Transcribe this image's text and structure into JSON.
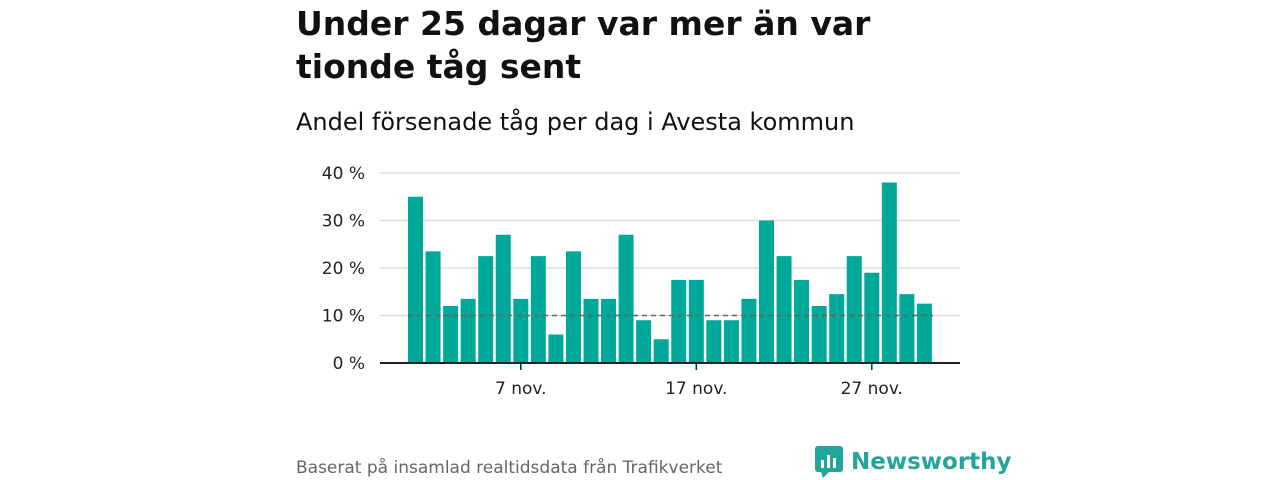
{
  "title": "Under 25 dagar var mer än var tionde tåg sent",
  "subtitle": "Andel försenade tåg per dag i Avesta kommun",
  "footer": "Baserat på insamlad realtidsdata från Trafikverket",
  "brand": "Newsworthy",
  "colors": {
    "bar": "#00a89a",
    "brand": "#22a59a",
    "reference_line": "#666666"
  },
  "chart_data": {
    "type": "bar",
    "x_tick_labels": [
      "7 nov.",
      "17 nov.",
      "27 nov."
    ],
    "x_tick_days": [
      7,
      17,
      27
    ],
    "days": [
      1,
      2,
      3,
      4,
      5,
      6,
      7,
      8,
      9,
      10,
      11,
      12,
      13,
      14,
      15,
      16,
      17,
      18,
      19,
      20,
      21,
      22,
      23,
      24,
      25,
      26,
      27,
      28,
      29,
      30
    ],
    "values": [
      35,
      23.5,
      12,
      13.5,
      22.5,
      27,
      13.5,
      22.5,
      6,
      23.5,
      13.5,
      13.5,
      27,
      9,
      5,
      17.5,
      17.5,
      9,
      9,
      13.5,
      30,
      22.5,
      17.5,
      12,
      14.5,
      22.5,
      19,
      38,
      14.5,
      12.5
    ],
    "y_ticks": [
      0,
      10,
      20,
      30,
      40
    ],
    "y_tick_labels": [
      "0 %",
      "10 %",
      "20 %",
      "30 %",
      "40 %"
    ],
    "ylim": [
      0,
      40
    ],
    "reference_line": 10,
    "grid": true
  }
}
